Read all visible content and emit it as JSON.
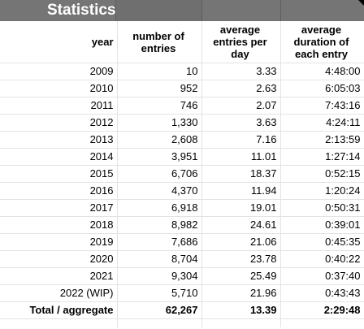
{
  "sheet": {
    "title": "Statistics",
    "headers": {
      "year": "year",
      "entries": "number of entries",
      "per_day": "average entries per day",
      "duration": "average duration of each entry"
    },
    "rows": [
      {
        "year": "2009",
        "entries": "10",
        "per_day": "3.33",
        "duration": "4:48:00"
      },
      {
        "year": "2010",
        "entries": "952",
        "per_day": "2.63",
        "duration": "6:05:03"
      },
      {
        "year": "2011",
        "entries": "746",
        "per_day": "2.07",
        "duration": "7:43:16"
      },
      {
        "year": "2012",
        "entries": "1,330",
        "per_day": "3.63",
        "duration": "4:24:11"
      },
      {
        "year": "2013",
        "entries": "2,608",
        "per_day": "7.16",
        "duration": "2:13:59"
      },
      {
        "year": "2014",
        "entries": "3,951",
        "per_day": "11.01",
        "duration": "1:27:14"
      },
      {
        "year": "2015",
        "entries": "6,706",
        "per_day": "18.37",
        "duration": "0:52:15"
      },
      {
        "year": "2016",
        "entries": "4,370",
        "per_day": "11.94",
        "duration": "1:20:24"
      },
      {
        "year": "2017",
        "entries": "6,918",
        "per_day": "19.01",
        "duration": "0:50:31"
      },
      {
        "year": "2018",
        "entries": "8,982",
        "per_day": "24.61",
        "duration": "0:39:01"
      },
      {
        "year": "2019",
        "entries": "7,686",
        "per_day": "21.06",
        "duration": "0:45:35"
      },
      {
        "year": "2020",
        "entries": "8,704",
        "per_day": "23.78",
        "duration": "0:40:22"
      },
      {
        "year": "2021",
        "entries": "9,304",
        "per_day": "25.49",
        "duration": "0:37:40"
      },
      {
        "year": "2022 (WIP)",
        "entries": "5,710",
        "per_day": "21.96",
        "duration": "0:43:43"
      }
    ],
    "total": {
      "year": "Total / aggregate",
      "entries": "62,267",
      "per_day": "13.39",
      "duration": "2:29:48"
    }
  },
  "colors": {
    "title_bg": "#757575",
    "title_text": "#ffffff",
    "grid": "#e2e3e3"
  }
}
